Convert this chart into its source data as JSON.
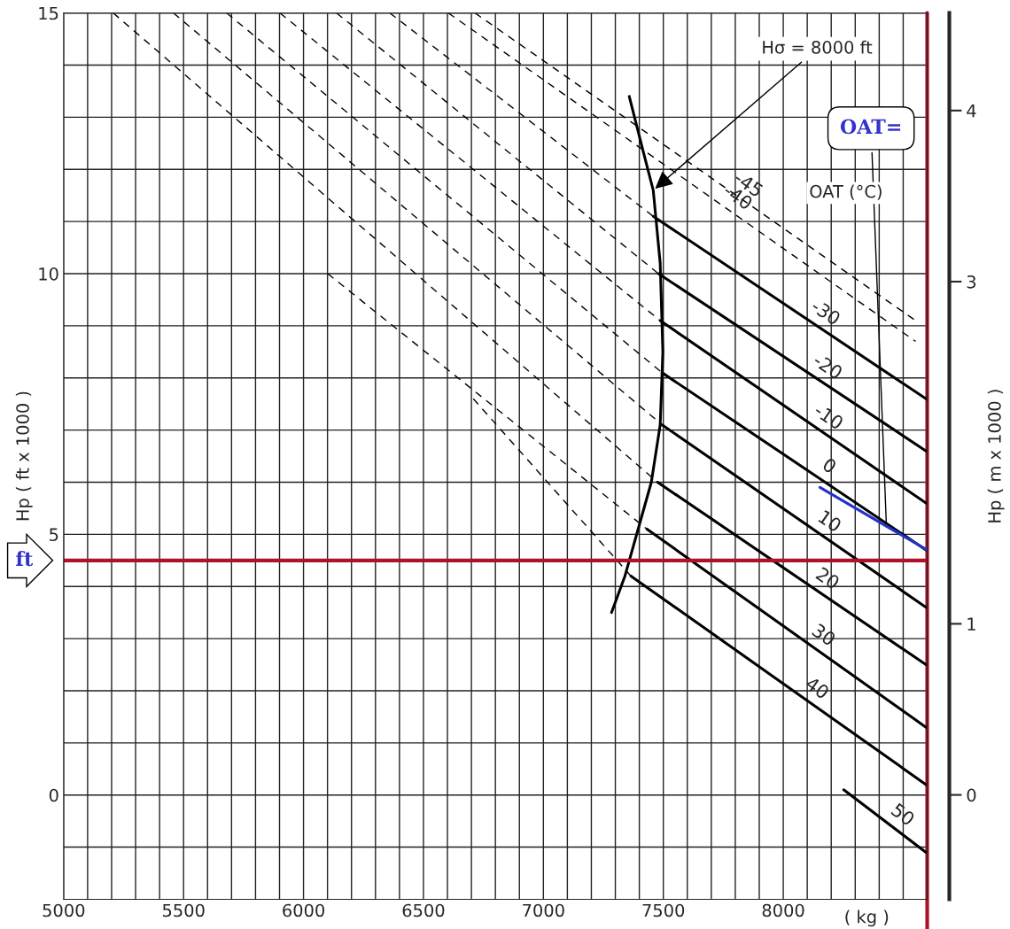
{
  "chart_data": {
    "type": "line",
    "xlabel": "( kg )",
    "ylabel": "Hp ( ft x 1000 )",
    "y2label": "Hp ( m x 1000 )",
    "xlim": [
      5000,
      8600
    ],
    "xticks": [
      5000,
      {
        "value": 5100,
        "label": null
      },
      {
        "value": 5200,
        "label": null
      },
      {
        "value": 5300,
        "label": null
      },
      {
        "value": 5400,
        "label": null
      },
      5500,
      {
        "value": 5600,
        "label": null
      },
      {
        "value": 5700,
        "label": null
      },
      {
        "value": 5800,
        "label": null
      },
      {
        "value": 5900,
        "label": null
      },
      6000,
      {
        "value": 6100,
        "label": null
      },
      {
        "value": 6200,
        "label": null
      },
      {
        "value": 6300,
        "label": null
      },
      {
        "value": 6400,
        "label": null
      },
      6500,
      {
        "value": 6600,
        "label": null
      },
      {
        "value": 6700,
        "label": null
      },
      {
        "value": 6800,
        "label": null
      },
      {
        "value": 6900,
        "label": null
      },
      7000,
      {
        "value": 7100,
        "label": null
      },
      {
        "value": 7200,
        "label": null
      },
      {
        "value": 7300,
        "label": null
      },
      {
        "value": 7400,
        "label": null
      },
      7500,
      {
        "value": 7600,
        "label": null
      },
      {
        "value": 7700,
        "label": null
      },
      {
        "value": 7800,
        "label": null
      },
      {
        "value": 7900,
        "label": null
      },
      8000,
      {
        "value": 8100,
        "label": null
      },
      {
        "value": 8200,
        "label": null
      },
      {
        "value": 8300,
        "label": null
      },
      {
        "value": 8400,
        "label": null
      },
      {
        "value": 8500,
        "label": null
      }
    ],
    "ylim": [
      -2,
      15
    ],
    "yticks": [
      {
        "value": -1,
        "label": null
      },
      0,
      {
        "value": 1,
        "label": null
      },
      {
        "value": 2,
        "label": null
      },
      {
        "value": 3,
        "label": null
      },
      {
        "value": 4,
        "label": null
      },
      5,
      {
        "value": 6,
        "label": null
      },
      {
        "value": 7,
        "label": null
      },
      {
        "value": 8,
        "label": null
      },
      {
        "value": 9,
        "label": null
      },
      10,
      {
        "value": 11,
        "label": null
      },
      {
        "value": 12,
        "label": null
      },
      {
        "value": 13,
        "label": null
      },
      {
        "value": 14,
        "label": null
      },
      15
    ],
    "y2lim": [
      -0.61,
      4.57
    ],
    "y2ticks": [
      0,
      1,
      3,
      4
    ],
    "grid": true,
    "legend": false,
    "marker": "none",
    "line_style": "solid",
    "series": [
      {
        "color": "#000000",
        "x": [
          7358,
          7413,
          7458,
          7487,
          7498,
          7487,
          7450,
          7395,
          7340,
          7284
        ],
        "values": [
          13.4,
          12.4,
          11.6,
          10.2,
          8.5,
          7.1,
          6.0,
          5.1,
          4.2,
          3.5
        ]
      },
      {
        "name": "-45",
        "color": "#000000",
        "line_style": "dashed",
        "x": [
          6715,
          8552
        ],
        "values": [
          15.0,
          9.1
        ]
      },
      {
        "name": "-40",
        "color": "#000000",
        "line_style": "dashed",
        "x": [
          6604,
          8552
        ],
        "values": [
          15.0,
          8.7
        ]
      },
      {
        "name": "-30",
        "color": "#000000",
        "x": [
          7458,
          8595
        ],
        "values": [
          11.1,
          7.6
        ]
      },
      {
        "name": "-20",
        "color": "#000000",
        "x": [
          7480,
          8595
        ],
        "values": [
          10.0,
          6.6
        ]
      },
      {
        "name": "-10",
        "color": "#000000",
        "x": [
          7487,
          8595
        ],
        "values": [
          9.1,
          5.6
        ]
      },
      {
        "name": "0",
        "color": "#000000",
        "x": [
          7495,
          8595
        ],
        "values": [
          8.1,
          4.7
        ]
      },
      {
        "name": "10",
        "color": "#000000",
        "x": [
          7495,
          8595
        ],
        "values": [
          7.1,
          3.6
        ]
      },
      {
        "name": "20",
        "color": "#000000",
        "x": [
          7476,
          8595
        ],
        "values": [
          6.0,
          2.5
        ]
      },
      {
        "name": "30",
        "color": "#000000",
        "x": [
          7432,
          8595
        ],
        "values": [
          5.1,
          1.3
        ]
      },
      {
        "name": "40",
        "color": "#000000",
        "x": [
          7365,
          8595
        ],
        "values": [
          4.2,
          0.2
        ]
      },
      {
        "name": "50",
        "color": "#000000",
        "x": [
          8252,
          8595
        ],
        "values": [
          0.1,
          -1.1
        ]
      },
      {
        "color": "#000000",
        "line_style": "dashed",
        "x": [
          6360,
          7458
        ],
        "values": [
          15.0,
          11.1
        ]
      },
      {
        "color": "#000000",
        "line_style": "dashed",
        "x": [
          6138,
          7480
        ],
        "values": [
          15.0,
          10.0
        ]
      },
      {
        "color": "#000000",
        "line_style": "dashed",
        "x": [
          5902,
          7487
        ],
        "values": [
          15.0,
          9.1
        ]
      },
      {
        "color": "#000000",
        "line_style": "dashed",
        "x": [
          5680,
          7495
        ],
        "values": [
          15.0,
          8.1
        ]
      },
      {
        "color": "#000000",
        "line_style": "dashed",
        "x": [
          5458,
          7495
        ],
        "values": [
          15.0,
          7.1
        ]
      },
      {
        "color": "#000000",
        "line_style": "dashed",
        "x": [
          5207,
          7476
        ],
        "values": [
          15.0,
          6.0
        ]
      },
      {
        "color": "#000000",
        "line_style": "dashed",
        "x": [
          6101,
          7432
        ],
        "values": [
          10.0,
          5.1
        ]
      },
      {
        "color": "#000000",
        "line_style": "dashed",
        "x": [
          6708,
          7365
        ],
        "values": [
          7.6,
          4.2
        ]
      },
      {
        "color": "#2233cc",
        "x": [
          8153,
          8600
        ],
        "values": [
          5.9,
          4.7
        ]
      }
    ],
    "ref_lines": [
      {
        "axis": "y",
        "value": 4.5,
        "color": "#b0102a"
      },
      {
        "axis": "x",
        "value": 8600,
        "color": "#b0102a"
      }
    ],
    "annotations": [
      {
        "text": "Hσ = 8000 ft",
        "x": 7458,
        "y": 11.6
      },
      "OAT (°C)",
      {
        "text": "OAT=",
        "x": 8430,
        "y": 5.16
      },
      {
        "text": "ft",
        "x": 5000,
        "y": 4.5
      }
    ]
  }
}
